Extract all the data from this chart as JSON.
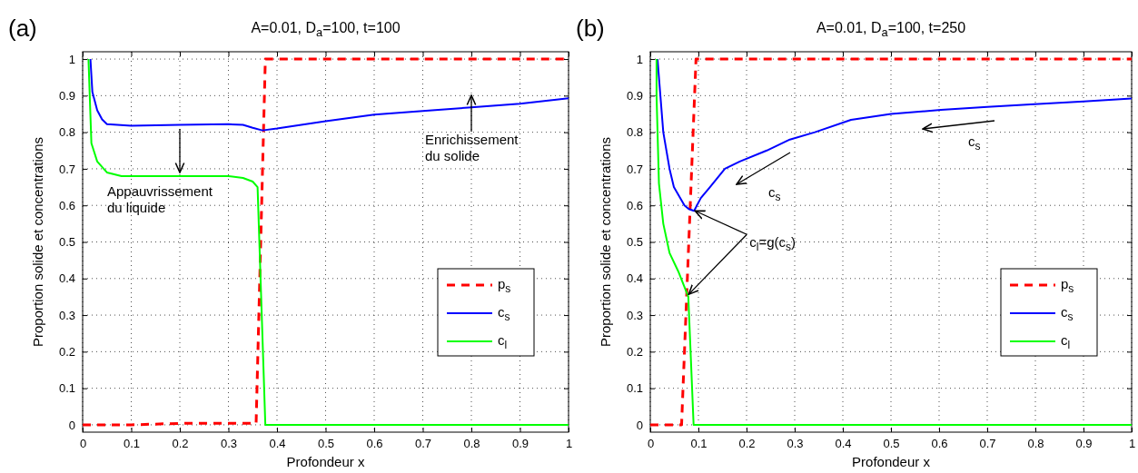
{
  "chart_data": [
    {
      "type": "line",
      "title": "A=0.01, D$_{a}$=100, t=100",
      "xlabel": "Profondeur x",
      "ylabel": "Proportion solide et concentrations",
      "xlim": [
        0,
        1
      ],
      "ylim": [
        -0.02,
        1.02
      ],
      "xticks": [
        0,
        0.1,
        0.2,
        0.3,
        0.4,
        0.5,
        0.6,
        0.7,
        0.8,
        0.9,
        1
      ],
      "yticks": [
        0,
        0.1,
        0.2,
        0.3,
        0.4,
        0.5,
        0.6,
        0.7,
        0.8,
        0.9,
        1
      ],
      "grid": true,
      "legend": "bottom right",
      "marker": "none",
      "series": [
        {
          "name": "p$_{s}$",
          "color": "#ff0000",
          "line_style": "dashed",
          "x": [
            0,
            0.1,
            0.2,
            0.3,
            0.357,
            0.376,
            0.4,
            1
          ],
          "values": [
            0,
            0,
            0.004,
            0.004,
            0.004,
            1,
            1,
            1
          ]
        },
        {
          "name": "c$_{s}$",
          "color": "#0000ff",
          "line_style": "solid",
          "x": [
            0.016,
            0.02,
            0.03,
            0.04,
            0.05,
            0.1,
            0.2,
            0.3,
            0.33,
            0.35,
            0.37,
            0.4,
            0.5,
            0.6,
            0.7,
            0.8,
            0.9,
            1
          ],
          "values": [
            1,
            0.91,
            0.86,
            0.835,
            0.822,
            0.818,
            0.82,
            0.822,
            0.82,
            0.812,
            0.805,
            0.81,
            0.83,
            0.848,
            0.858,
            0.868,
            0.878,
            0.893
          ]
        },
        {
          "name": "c$_{l}$",
          "color": "#00ff00",
          "line_style": "solid",
          "x": [
            0.012,
            0.018,
            0.03,
            0.05,
            0.08,
            0.3,
            0.33,
            0.35,
            0.36,
            0.376,
            1
          ],
          "values": [
            1,
            0.77,
            0.72,
            0.69,
            0.68,
            0.68,
            0.675,
            0.665,
            0.65,
            0,
            0
          ]
        }
      ],
      "annotations": [
        "(a)",
        "Appauvrissement\ndu liquide",
        "Enrichissement\ndu solide"
      ]
    },
    {
      "type": "line",
      "title": "A=0.01, D$_{a}$=100, t=250",
      "xlabel": "Profondeur x",
      "ylabel": "Proportion solide et concentrations",
      "xlim": [
        0,
        1
      ],
      "ylim": [
        -0.02,
        1.02
      ],
      "xticks": [
        0,
        0.1,
        0.2,
        0.3,
        0.4,
        0.5,
        0.6,
        0.7,
        0.8,
        0.9,
        1
      ],
      "yticks": [
        0,
        0.1,
        0.2,
        0.3,
        0.4,
        0.5,
        0.6,
        0.7,
        0.8,
        0.9,
        1
      ],
      "grid": true,
      "legend": "bottom right",
      "marker": "none",
      "series": [
        {
          "name": "p$_{s}$",
          "color": "#ff0000",
          "line_style": "dashed",
          "x": [
            0,
            0.065,
            0.095,
            1
          ],
          "values": [
            0,
            0,
            1,
            1
          ]
        },
        {
          "name": "c$_{s}$",
          "color": "#0000ff",
          "line_style": "solid",
          "x": [
            0.015,
            0.021,
            0.027,
            0.04,
            0.049,
            0.071,
            0.08,
            0.091,
            0.105,
            0.124,
            0.155,
            0.186,
            0.242,
            0.29,
            0.342,
            0.417,
            0.5,
            0.604,
            0.7,
            0.79,
            0.9,
            1
          ],
          "values": [
            1,
            0.9,
            0.8,
            0.7,
            0.65,
            0.6,
            0.59,
            0.585,
            0.62,
            0.65,
            0.7,
            0.72,
            0.75,
            0.78,
            0.8,
            0.834,
            0.85,
            0.861,
            0.869,
            0.876,
            0.884,
            0.892
          ]
        },
        {
          "name": "c$_{l}$",
          "color": "#00ff00",
          "line_style": "solid",
          "x": [
            0.013,
            0.013,
            0.018,
            0.027,
            0.04,
            0.058,
            0.079,
            0.09,
            1
          ],
          "values": [
            1,
            0.9,
            0.66,
            0.55,
            0.47,
            0.42,
            0.35,
            0,
            0
          ]
        }
      ],
      "annotations": [
        "(b)",
        "c$_{s}$",
        "c$_{s}$",
        {
          "text": "c$_{l}$=g(c$_{s}$)",
          "x": 0.093,
          "y": 0.585
        }
      ]
    }
  ]
}
